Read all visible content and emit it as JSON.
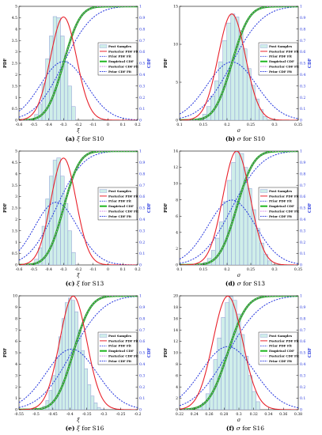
{
  "colors": {
    "hist_fill": "#cfeee9",
    "hist_edge": "#8e9bd6",
    "posterior_pdf": "#e8202a",
    "prior_pdf": "#2233dd",
    "empirical_cdf": "#1fb51f",
    "posterior_cdf": "#c66be0",
    "prior_cdf": "#2233dd",
    "right_axis": "#2233dd"
  },
  "legend_entries": [
    "Post Samples",
    "Posterior PDF Fit",
    "Prior PDF Fit",
    "Empirical CDF",
    "Posterior CDF Fit",
    "Prior CDF Fit"
  ],
  "chart_data": [
    {
      "type": "bar",
      "caption_letter": "(a)",
      "caption_symbol": "ξ",
      "caption_text": "for S10",
      "xlabel": "ξ",
      "ylabel": "PDF",
      "ylabel_right": "CDF",
      "xlim": [
        -0.6,
        0.2
      ],
      "ylim": [
        0,
        5
      ],
      "xticks": [
        "-0.6",
        "-0.5",
        "-0.4",
        "-0.3",
        "-0.2",
        "-0.1",
        "0",
        "0.1",
        "0.2"
      ],
      "yticks": [
        "0",
        "0.5",
        "1",
        "1.5",
        "2",
        "2.5",
        "3",
        "3.5",
        "4",
        "4.5",
        "5"
      ],
      "yticks_right": [
        "0",
        "0.1",
        "0.2",
        "0.3",
        "0.4",
        "0.5",
        "0.6",
        "0.7",
        "0.8",
        "0.9",
        "1"
      ],
      "posterior": {
        "mean": -0.3,
        "sd": 0.088
      },
      "prior": {
        "mean": -0.3,
        "sd": 0.155
      },
      "hist_bins": [
        -0.52,
        0.025,
        12
      ],
      "hist_values": [
        0.05,
        0.25,
        0.7,
        1.6,
        2.7,
        3.7,
        4.55,
        4.5,
        3.7,
        2.6,
        1.5,
        0.6
      ]
    },
    {
      "type": "bar",
      "caption_letter": "(b)",
      "caption_symbol": "σ",
      "caption_text": "for S10",
      "xlabel": "σ",
      "ylabel": "PDF",
      "ylabel_right": "CDF",
      "xlim": [
        0.1,
        0.35
      ],
      "ylim": [
        0,
        15
      ],
      "xticks": [
        "0.1",
        "0.15",
        "0.2",
        "0.25",
        "0.3",
        "0.35"
      ],
      "yticks": [
        "0",
        "5",
        "10",
        "15"
      ],
      "yticks_right": [
        "0",
        "0.1",
        "0.2",
        "0.3",
        "0.4",
        "0.5",
        "0.6",
        "0.7",
        "0.8",
        "0.9",
        "1"
      ],
      "posterior": {
        "mean": 0.21,
        "sd": 0.0285
      },
      "prior": {
        "mean": 0.21,
        "sd": 0.052
      },
      "hist_bins": [
        0.14,
        0.0085,
        17
      ],
      "hist_values": [
        0.3,
        0.8,
        1.8,
        3.2,
        5.2,
        7.7,
        10.5,
        12.8,
        14.0,
        13.6,
        11.8,
        9.4,
        6.8,
        4.6,
        2.8,
        1.4,
        0.5
      ]
    },
    {
      "type": "bar",
      "caption_letter": "(c)",
      "caption_symbol": "ξ",
      "caption_text": "for S13",
      "xlabel": "ξ",
      "ylabel": "PDF",
      "ylabel_right": "CDF",
      "xlim": [
        -0.6,
        0.2
      ],
      "ylim": [
        0,
        5
      ],
      "xticks": [
        "-0.6",
        "-0.5",
        "-0.4",
        "-0.3",
        "-0.2",
        "-0.1",
        "0",
        "0.1",
        "0.2"
      ],
      "yticks": [
        "0",
        "0.5",
        "1",
        "1.5",
        "2",
        "2.5",
        "3",
        "3.5",
        "4",
        "4.5",
        "5"
      ],
      "yticks_right": [
        "0",
        "0.1",
        "0.2",
        "0.3",
        "0.4",
        "0.5",
        "0.6",
        "0.7",
        "0.8",
        "0.9",
        "1"
      ],
      "posterior": {
        "mean": -0.3,
        "sd": 0.085
      },
      "prior": {
        "mean": -0.35,
        "sd": 0.145
      },
      "hist_bins": [
        -0.52,
        0.025,
        12
      ],
      "hist_values": [
        0.05,
        0.25,
        0.75,
        1.7,
        2.9,
        3.9,
        4.6,
        4.7,
        3.9,
        2.7,
        1.5,
        0.55
      ]
    },
    {
      "type": "bar",
      "caption_letter": "(d)",
      "caption_symbol": "σ",
      "caption_text": "for S13",
      "xlabel": "σ",
      "ylabel": "PDF",
      "ylabel_right": "CDF",
      "xlim": [
        0.1,
        0.35
      ],
      "ylim": [
        0,
        14
      ],
      "xticks": [
        "0.1",
        "0.15",
        "0.2",
        "0.25",
        "0.3",
        "0.35"
      ],
      "yticks": [
        "0",
        "2",
        "4",
        "6",
        "8",
        "10",
        "12",
        "14"
      ],
      "yticks_right": [
        "0",
        "0.1",
        "0.2",
        "0.3",
        "0.4",
        "0.5",
        "0.6",
        "0.7",
        "0.8",
        "0.9",
        "1"
      ],
      "posterior": {
        "mean": 0.22,
        "sd": 0.0285
      },
      "prior": {
        "mean": 0.21,
        "sd": 0.05
      },
      "hist_bins": [
        0.15,
        0.0085,
        17
      ],
      "hist_values": [
        0.3,
        0.8,
        1.8,
        3.3,
        5.3,
        7.8,
        10.4,
        12.6,
        13.9,
        13.7,
        12.0,
        9.4,
        6.8,
        4.5,
        2.7,
        1.3,
        0.5
      ]
    },
    {
      "type": "bar",
      "caption_letter": "(e)",
      "caption_symbol": "ξ",
      "caption_text": "for S16",
      "xlabel": "ξ",
      "ylabel": "PDF",
      "ylabel_right": "CDF",
      "xlim": [
        -0.55,
        -0.2
      ],
      "ylim": [
        0,
        10
      ],
      "xticks": [
        "-0.55",
        "-0.5",
        "-0.45",
        "-0.4",
        "-0.35",
        "-0.3",
        "-0.25",
        "-0.2"
      ],
      "yticks": [
        "0",
        "1",
        "2",
        "3",
        "4",
        "5",
        "6",
        "7",
        "8",
        "9",
        "10"
      ],
      "yticks_right": [
        "0",
        "0.1",
        "0.2",
        "0.3",
        "0.4",
        "0.5",
        "0.6",
        "0.7",
        "0.8",
        "0.9",
        "1"
      ],
      "posterior": {
        "mean": -0.39,
        "sd": 0.04
      },
      "prior": {
        "mean": -0.395,
        "sd": 0.075
      },
      "hist_bins": [
        -0.49,
        0.0095,
        20
      ],
      "hist_values": [
        0.1,
        0.3,
        0.8,
        1.7,
        3.0,
        4.6,
        6.4,
        8.0,
        9.4,
        9.8,
        9.6,
        8.6,
        7.0,
        5.2,
        3.6,
        2.2,
        1.2,
        0.6,
        0.2,
        0.05
      ]
    },
    {
      "type": "bar",
      "caption_letter": "(f)",
      "caption_symbol": "σ",
      "caption_text": "for S16",
      "xlabel": "σ",
      "ylabel": "PDF",
      "ylabel_right": "CDF",
      "xlim": [
        0.22,
        0.38
      ],
      "ylim": [
        0,
        20
      ],
      "xticks": [
        "0.22",
        "0.24",
        "0.26",
        "0.28",
        "0.3",
        "0.32",
        "0.34",
        "0.36",
        "0.38"
      ],
      "yticks": [
        "0",
        "2",
        "4",
        "6",
        "8",
        "10",
        "12",
        "14",
        "16",
        "18",
        "20"
      ],
      "yticks_right": [
        "0",
        "0.1",
        "0.2",
        "0.3",
        "0.4",
        "0.5",
        "0.6",
        "0.7",
        "0.8",
        "0.9",
        "1"
      ],
      "posterior": {
        "mean": 0.285,
        "sd": 0.02
      },
      "prior": {
        "mean": 0.285,
        "sd": 0.036
      },
      "hist_bins": [
        0.245,
        0.0052,
        16
      ],
      "hist_values": [
        0.4,
        1.2,
        2.8,
        5.4,
        8.8,
        12.6,
        16.2,
        18.8,
        19.9,
        19.2,
        16.8,
        13.2,
        9.4,
        6.0,
        3.2,
        1.4
      ]
    }
  ]
}
